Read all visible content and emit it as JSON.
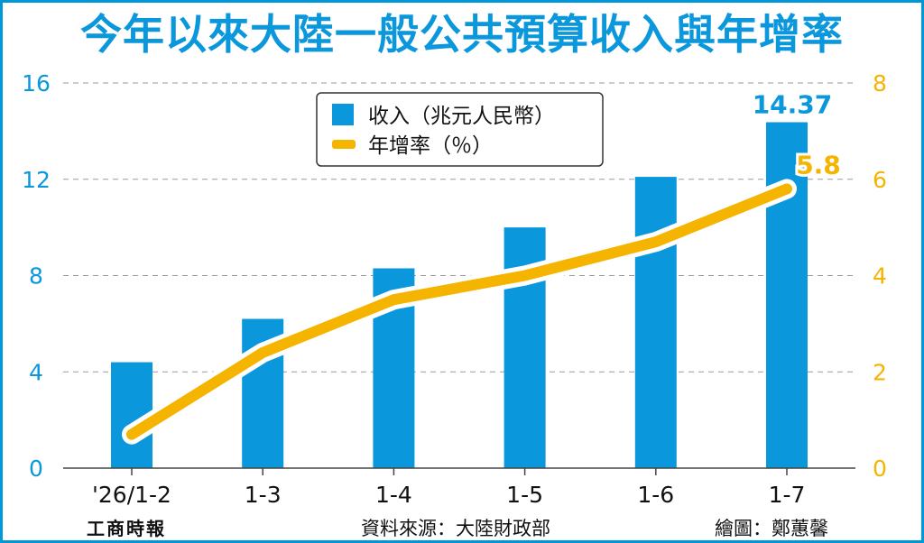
{
  "title": "今年以來大陸一般公共預算收入與年增率",
  "footer": {
    "logo": "工商時報",
    "source": "資料來源：大陸財政部",
    "credit": "繪圖：鄭蕙馨"
  },
  "colors": {
    "bar": "#0a97dc",
    "line": "#f5b400",
    "title": "#0a97dc",
    "left_axis": "#0a97dc",
    "right_axis": "#f5b400",
    "grid": "#9a9a9a"
  },
  "chart_data": {
    "type": "bar",
    "title": "今年以來大陸一般公共預算收入與年增率",
    "categories": [
      "'26/1-2",
      "1-3",
      "1-4",
      "1-5",
      "1-6",
      "1-7"
    ],
    "series": [
      {
        "name": "收入（兆元人民幣）",
        "type": "bar",
        "axis": "left",
        "values": [
          4.4,
          6.2,
          8.3,
          10.0,
          12.1,
          14.37
        ]
      },
      {
        "name": "年增率（％）",
        "type": "line",
        "axis": "right",
        "values": [
          0.7,
          2.4,
          3.5,
          4.0,
          4.7,
          5.8
        ]
      }
    ],
    "left_axis": {
      "ticks": [
        0,
        4,
        8,
        12,
        16
      ],
      "ylim": [
        0,
        16
      ]
    },
    "right_axis": {
      "ticks": [
        0,
        2,
        4,
        6,
        8
      ],
      "ylim": [
        0,
        8
      ]
    },
    "data_labels": [
      {
        "series": 0,
        "index": 5,
        "text": "14.37"
      },
      {
        "series": 1,
        "index": 5,
        "text": "5.8"
      }
    ],
    "grid": "horizontal dashed",
    "legend_placement": "top-center"
  }
}
